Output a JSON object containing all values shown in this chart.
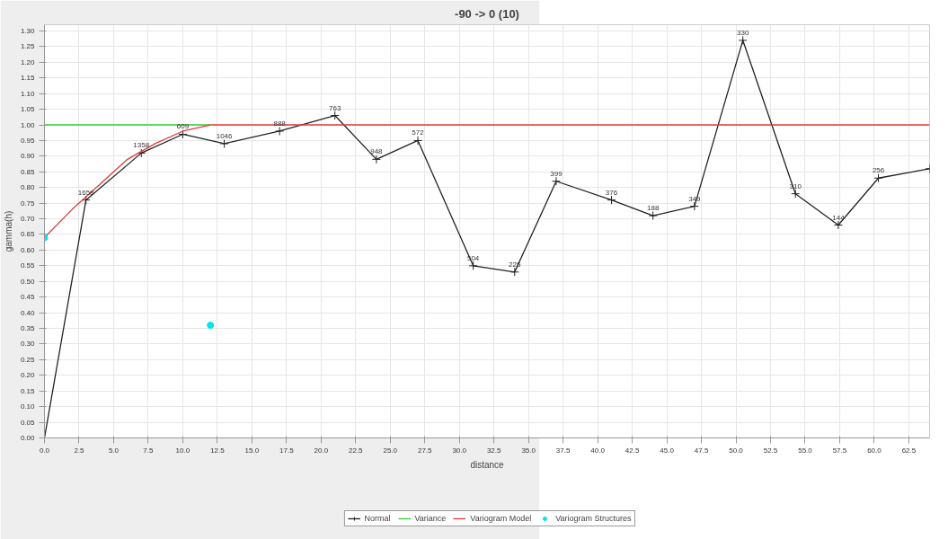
{
  "chart_data": {
    "type": "line",
    "title": "-90 -> 0 (10)",
    "xlabel": "distance",
    "ylabel": "gamma(h)",
    "xlim": [
      0,
      64
    ],
    "ylim": [
      0,
      1.32
    ],
    "xticks": [
      {
        "value": 0,
        "label": "0.0"
      },
      2.5,
      {
        "value": 5,
        "label": "5.0"
      },
      7.5,
      {
        "value": 10,
        "label": "10.0"
      },
      12.5,
      {
        "value": 15,
        "label": "15.0"
      },
      17.5,
      {
        "value": 20,
        "label": "20.0"
      },
      22.5,
      {
        "value": 25,
        "label": "25.0"
      },
      27.5,
      {
        "value": 30,
        "label": "30.0"
      },
      32.5,
      {
        "value": 35,
        "label": "35.0"
      },
      37.5,
      {
        "value": 40,
        "label": "40.0"
      },
      42.5,
      {
        "value": 45,
        "label": "45.0"
      },
      47.5,
      {
        "value": 50,
        "label": "50.0"
      },
      52.5,
      {
        "value": 55,
        "label": "55.0"
      },
      57.5,
      {
        "value": 60,
        "label": "60.0"
      },
      62.5
    ],
    "yticks": [
      {
        "value": 0,
        "label": "0.00"
      },
      0.05,
      {
        "value": 0.1,
        "label": "0.10"
      },
      0.15,
      {
        "value": 0.2,
        "label": "0.20"
      },
      0.25,
      {
        "value": 0.3,
        "label": "0.30"
      },
      0.35,
      {
        "value": 0.4,
        "label": "0.40"
      },
      0.45,
      {
        "value": 0.5,
        "label": "0.50"
      },
      0.55,
      {
        "value": 0.6,
        "label": "0.60"
      },
      0.65,
      {
        "value": 0.7,
        "label": "0.70"
      },
      0.75,
      {
        "value": 0.8,
        "label": "0.80"
      },
      0.85,
      {
        "value": 0.9,
        "label": "0.90"
      },
      0.95,
      {
        "value": 1.0,
        "label": "1.00"
      },
      1.05,
      {
        "value": 1.1,
        "label": "1.10"
      },
      1.15,
      {
        "value": 1.2,
        "label": "1.20"
      },
      1.25,
      {
        "value": 1.3,
        "label": "1.30"
      }
    ],
    "grid": true,
    "legend": "bottom",
    "series": [
      {
        "name": "Normal",
        "color": "#222222",
        "marker": "cross",
        "x": [
          0,
          3,
          7,
          10,
          13,
          17,
          21,
          24,
          27,
          31,
          34,
          37,
          41,
          44,
          47,
          50.5,
          54.3,
          57.4,
          60.3,
          64
        ],
        "values": [
          0.0,
          0.76,
          0.91,
          0.97,
          0.94,
          0.98,
          1.03,
          0.89,
          0.95,
          0.55,
          0.53,
          0.82,
          0.76,
          0.71,
          0.74,
          1.27,
          0.78,
          0.68,
          0.83,
          0.86
        ]
      },
      {
        "name": "Variance",
        "type": "line",
        "color": "#33cc33",
        "marker": "none",
        "x": [
          0,
          12
        ],
        "values": [
          1.0,
          1.0
        ]
      },
      {
        "name": "Variogram Model",
        "type": "line",
        "color": "#e03a3a",
        "marker": "none",
        "x": [
          0,
          2,
          4,
          6,
          8,
          10,
          12,
          64
        ],
        "values": [
          0.64,
          0.73,
          0.81,
          0.89,
          0.94,
          0.98,
          1.0,
          1.0
        ]
      },
      {
        "name": "Variogram Structures",
        "type": "scatter",
        "color": "#00e5ee",
        "marker": "circle",
        "x": [
          0,
          12
        ],
        "values": [
          0.64,
          0.36
        ]
      }
    ],
    "annotations": [
      {
        "text": "1658",
        "x": 3,
        "y": 0.76
      },
      {
        "text": "1358",
        "x": 7,
        "y": 0.91
      },
      {
        "text": "609",
        "x": 10,
        "y": 0.97
      },
      {
        "text": "1046",
        "x": 13,
        "y": 0.94
      },
      {
        "text": "888",
        "x": 17,
        "y": 0.98
      },
      {
        "text": "763",
        "x": 21,
        "y": 1.03
      },
      {
        "text": "948",
        "x": 24,
        "y": 0.89
      },
      {
        "text": "572",
        "x": 27,
        "y": 0.95
      },
      {
        "text": "504",
        "x": 31,
        "y": 0.55
      },
      {
        "text": "225",
        "x": 34,
        "y": 0.53
      },
      {
        "text": "399",
        "x": 37,
        "y": 0.82
      },
      {
        "text": "376",
        "x": 41,
        "y": 0.76
      },
      {
        "text": "188",
        "x": 44,
        "y": 0.71
      },
      {
        "text": "349",
        "x": 47,
        "y": 0.74
      },
      {
        "text": "330",
        "x": 50.5,
        "y": 1.27
      },
      {
        "text": "310",
        "x": 54.3,
        "y": 0.78
      },
      {
        "text": "144",
        "x": 57.4,
        "y": 0.68
      },
      {
        "text": "256",
        "x": 60.3,
        "y": 0.83
      }
    ]
  }
}
